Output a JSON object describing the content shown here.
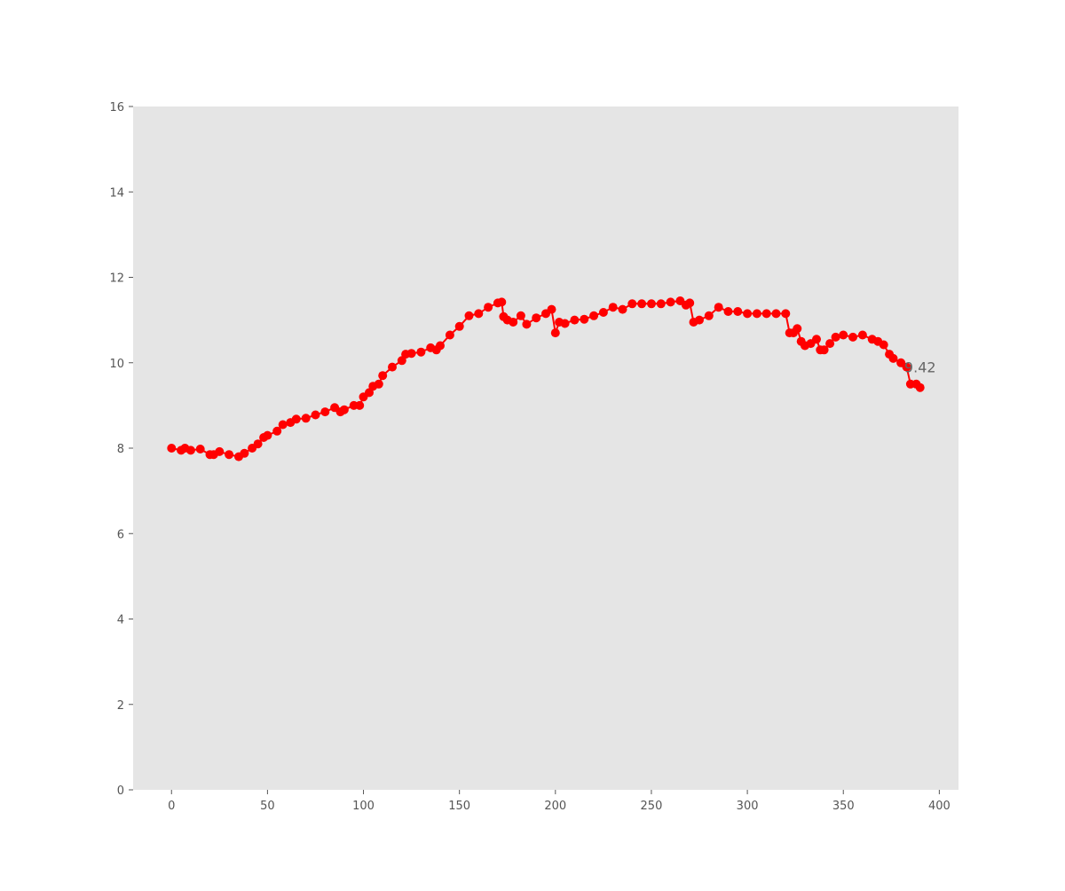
{
  "chart_data": {
    "type": "line",
    "title": "",
    "xlabel": "",
    "ylabel": "",
    "xlim": [
      -20,
      410
    ],
    "ylim": [
      0,
      16
    ],
    "xticks": [
      0,
      50,
      100,
      150,
      200,
      250,
      300,
      350,
      400
    ],
    "yticks": [
      0,
      2,
      4,
      6,
      8,
      10,
      12,
      14,
      16
    ],
    "grid": false,
    "background": "#e5e5e5",
    "series_color": "#ff0000",
    "annotation": {
      "text": "9.42",
      "x": 390,
      "y": 9.9
    },
    "x": [
      0,
      5,
      7,
      10,
      15,
      20,
      22,
      25,
      30,
      35,
      38,
      42,
      45,
      48,
      50,
      55,
      58,
      62,
      65,
      70,
      75,
      80,
      85,
      88,
      90,
      95,
      98,
      100,
      103,
      105,
      108,
      110,
      115,
      120,
      122,
      125,
      130,
      135,
      138,
      140,
      145,
      150,
      155,
      160,
      165,
      170,
      172,
      173,
      175,
      178,
      182,
      185,
      190,
      195,
      198,
      200,
      202,
      205,
      210,
      215,
      220,
      225,
      230,
      235,
      240,
      245,
      250,
      255,
      260,
      265,
      268,
      270,
      272,
      275,
      280,
      285,
      290,
      295,
      300,
      305,
      310,
      315,
      320,
      322,
      324,
      326,
      328,
      330,
      333,
      336,
      338,
      340,
      343,
      346,
      350,
      355,
      360,
      365,
      368,
      371,
      374,
      376,
      380,
      383,
      385,
      388,
      390
    ],
    "y": [
      8.0,
      7.95,
      8.0,
      7.95,
      7.98,
      7.85,
      7.85,
      7.92,
      7.85,
      7.8,
      7.88,
      8.0,
      8.1,
      8.25,
      8.3,
      8.4,
      8.55,
      8.6,
      8.68,
      8.7,
      8.78,
      8.85,
      8.95,
      8.85,
      8.9,
      9.0,
      9.0,
      9.2,
      9.3,
      9.45,
      9.5,
      9.7,
      9.9,
      10.05,
      10.2,
      10.22,
      10.25,
      10.35,
      10.3,
      10.4,
      10.65,
      10.85,
      11.1,
      11.15,
      11.3,
      11.4,
      11.42,
      11.08,
      11.0,
      10.95,
      11.1,
      10.9,
      11.05,
      11.15,
      11.25,
      10.7,
      10.95,
      10.92,
      11.0,
      11.02,
      11.1,
      11.18,
      11.3,
      11.25,
      11.38,
      11.38,
      11.38,
      11.38,
      11.42,
      11.45,
      11.35,
      11.4,
      10.95,
      11.0,
      11.1,
      11.3,
      11.2,
      11.2,
      11.15,
      11.15,
      11.15,
      11.15,
      11.15,
      10.7,
      10.7,
      10.8,
      10.5,
      10.4,
      10.45,
      10.55,
      10.3,
      10.3,
      10.45,
      10.6,
      10.65,
      10.6,
      10.65,
      10.55,
      10.5,
      10.42,
      10.2,
      10.1,
      10.0,
      9.9,
      9.5,
      9.5,
      9.42
    ]
  }
}
